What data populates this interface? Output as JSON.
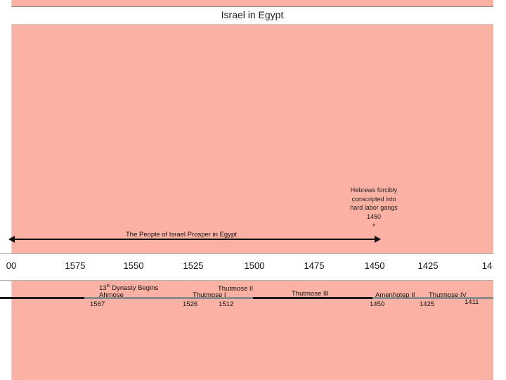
{
  "title": "Israel in Egypt",
  "note": {
    "lines": [
      "Hebrews forcibly",
      "conscripted into",
      "hard labor gangs",
      "1450",
      "+"
    ]
  },
  "era": {
    "label": "The People of Israel Prosper in Egypt",
    "range": [
      1600,
      1450
    ]
  },
  "axis": {
    "ticks": [
      "00",
      "1575",
      "1550",
      "1525",
      "1500",
      "1475",
      "1450",
      "1425",
      "14"
    ]
  },
  "rulers": {
    "dynasty_prefix": "13",
    "dynasty_sup": "th",
    "dynasty_rest": " Dynasty Begins",
    "ahmose": "Ahmose",
    "ahmose_year": "1567",
    "thutmose2": "Thutmose II",
    "thutmose1": "Thutmose I",
    "t1_year": "1526",
    "t2_year": "1512",
    "thutmose3": "Thutmose III",
    "amenhotep2": "Amenhotep II",
    "thutmose4": "Thutmose IV",
    "a2_year": "1450",
    "t4_year": "1425",
    "end_year": "1411"
  }
}
